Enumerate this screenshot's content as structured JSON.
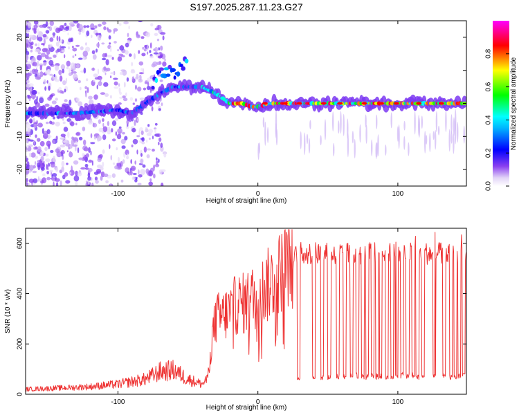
{
  "title": "S197.2025.287.11.23.G27",
  "chart_data": [
    {
      "type": "heatmap",
      "xlabel": "Height of straight line (km)",
      "ylabel": "Frequency (Hz)",
      "xlim": [
        -166,
        149
      ],
      "ylim": [
        -25,
        25
      ],
      "xticks": [
        -100,
        0,
        100
      ],
      "yticks": [
        -20,
        -10,
        0,
        10,
        20
      ],
      "colorbar": {
        "label": "Normalized spectral amplitude",
        "ticks": [
          "0.0",
          "0.2",
          "0.4",
          "0.6",
          "0.8"
        ],
        "range": [
          0,
          1
        ]
      },
      "ridge": {
        "x": [
          -166,
          -130,
          -100,
          -90,
          -80,
          -70,
          -60,
          -50,
          -40,
          -30,
          -20,
          -10,
          -5,
          0,
          10,
          20,
          50,
          100,
          149
        ],
        "y": [
          -3,
          -3,
          -2,
          -3,
          0,
          3,
          5,
          5,
          5,
          3,
          0,
          0,
          -1,
          -1,
          0,
          0,
          0,
          0,
          0
        ]
      },
      "upper_branch": {
        "x": [
          -75,
          -70,
          -65,
          -60,
          -55,
          -50
        ],
        "y": [
          6,
          9,
          10,
          9,
          11,
          14
        ]
      }
    },
    {
      "type": "line",
      "xlabel": "Height of straight line (km)",
      "ylabel": "SNR (10 * v/v)",
      "xlim": [
        -166,
        149
      ],
      "ylim": [
        0,
        660
      ],
      "xticks": [
        -100,
        0,
        100
      ],
      "yticks": [
        0,
        200,
        400,
        600
      ],
      "series": [
        {
          "name": "SNR",
          "color": "#ee3333",
          "x": [
            -166,
            -140,
            -120,
            -100,
            -80,
            -70,
            -60,
            -50,
            -40,
            -36,
            -33,
            -30,
            -25,
            -20,
            -15,
            -10,
            -5,
            0,
            5,
            10,
            15,
            20,
            25,
            30,
            40,
            50,
            60,
            70,
            80,
            90,
            100,
            110,
            120,
            130,
            140,
            149
          ],
          "y": [
            20,
            25,
            30,
            40,
            60,
            90,
            95,
            60,
            40,
            60,
            220,
            300,
            310,
            330,
            360,
            360,
            380,
            390,
            420,
            450,
            480,
            520,
            540,
            560,
            560,
            560,
            560,
            560,
            560,
            560,
            560,
            560,
            560,
            560,
            560,
            560
          ]
        }
      ],
      "dropouts": [
        {
          "x": 29,
          "y": 70
        },
        {
          "x": 40,
          "y": 70
        },
        {
          "x": 46,
          "y": 70
        },
        {
          "x": 51,
          "y": 70
        },
        {
          "x": 57,
          "y": 70
        },
        {
          "x": 62,
          "y": 70
        },
        {
          "x": 67,
          "y": 75
        },
        {
          "x": 71,
          "y": 75
        },
        {
          "x": 75,
          "y": 70
        },
        {
          "x": 78,
          "y": 70
        },
        {
          "x": 82,
          "y": 75
        },
        {
          "x": 85,
          "y": 70
        },
        {
          "x": 88,
          "y": 70
        },
        {
          "x": 92,
          "y": 70
        },
        {
          "x": 96,
          "y": 70
        },
        {
          "x": 99,
          "y": 70
        },
        {
          "x": 103,
          "y": 75
        },
        {
          "x": 107,
          "y": 70
        },
        {
          "x": 111,
          "y": 75
        },
        {
          "x": 114,
          "y": 70
        },
        {
          "x": 118,
          "y": 70
        },
        {
          "x": 126,
          "y": 75
        },
        {
          "x": 133,
          "y": 70
        },
        {
          "x": 138,
          "y": 70
        },
        {
          "x": 141,
          "y": 70
        },
        {
          "x": 144,
          "y": 70
        },
        {
          "x": 147,
          "y": 75
        }
      ]
    }
  ]
}
